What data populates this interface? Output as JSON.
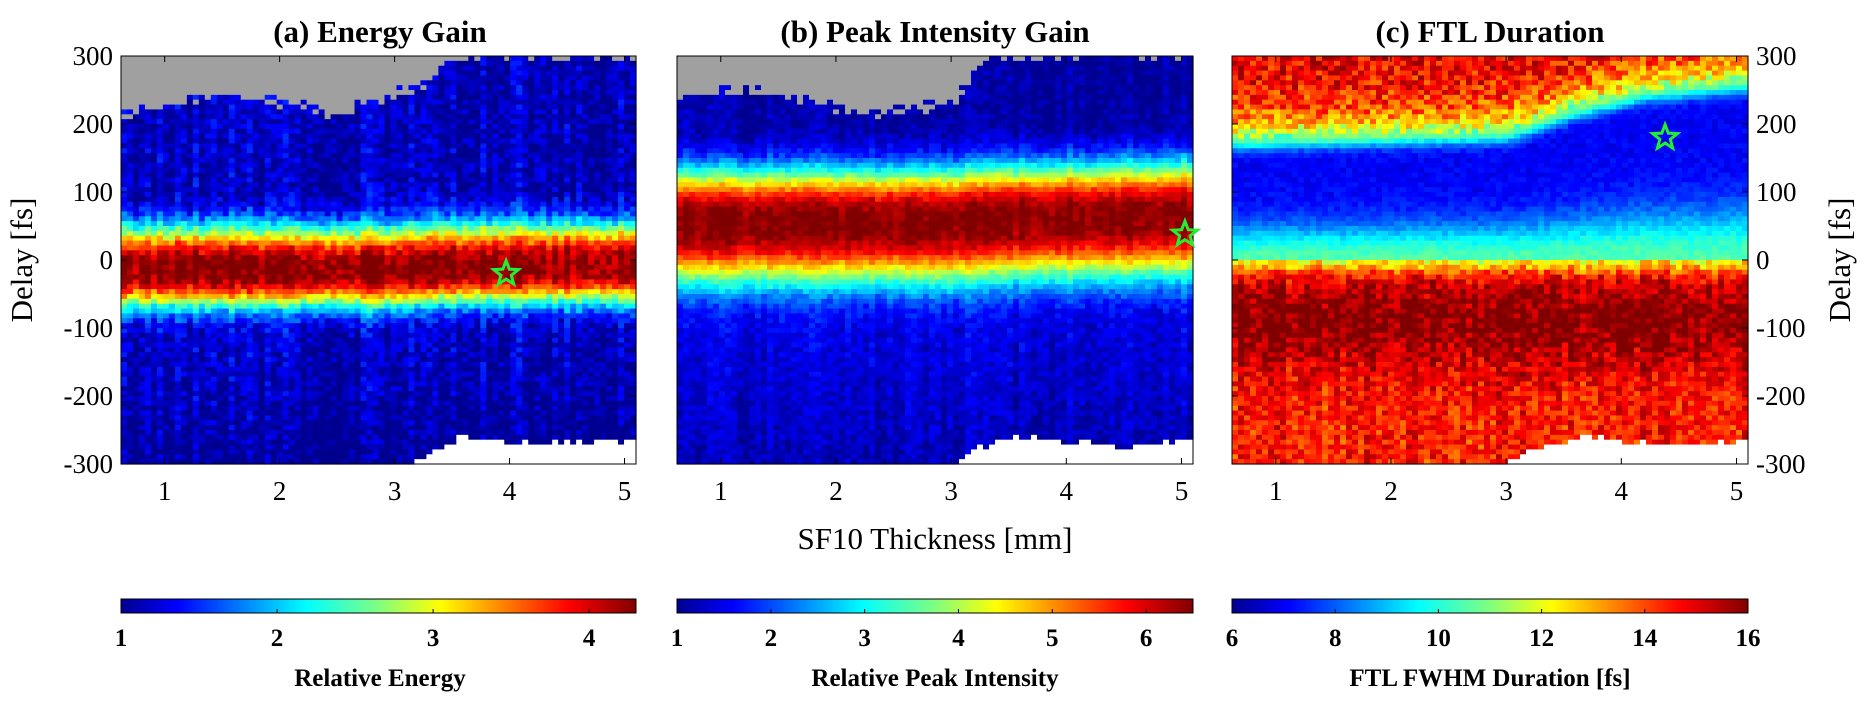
{
  "chart_data": [
    {
      "type": "heatmap",
      "title": "(a) Energy Gain",
      "xlabel": "SF10 Thickness [mm]",
      "ylabel": "Delay [fs]",
      "xlim": [
        0.62,
        5.1
      ],
      "ylim": [
        -300,
        300
      ],
      "xticks": [
        1,
        2,
        3,
        4,
        5
      ],
      "yticks": [
        -300,
        -200,
        -100,
        0,
        100,
        200,
        300
      ],
      "colorbar": {
        "label": "Relative Energy",
        "min": 1,
        "max": 4.3,
        "ticks": [
          1,
          2,
          3,
          4
        ]
      },
      "features": {
        "peak_center": [
          [
            0.62,
            -15
          ],
          [
            3.0,
            -15
          ],
          [
            3.4,
            -10
          ],
          [
            5.1,
            -10
          ]
        ],
        "band_half_width": 65,
        "band_half_width_low": 55,
        "peak_value": 4.3,
        "baseline": 1.0,
        "upper_floor": 1.15,
        "masked_top": {
          "from_fs": [
            [
              0.62,
              215
            ],
            [
              1.5,
              245
            ],
            [
              2.5,
              215
            ],
            [
              3.2,
              255
            ],
            [
              3.5,
              300
            ],
            [
              5.1,
              300
            ]
          ],
          "color": "#a0a0a0"
        },
        "masked_bottom": {
          "from_fs": [
            [
              0.62,
              -310
            ],
            [
              3.0,
              -310
            ],
            [
              3.3,
              -285
            ],
            [
              3.6,
              -260
            ],
            [
              4.2,
              -270
            ],
            [
              5.1,
              -265
            ]
          ],
          "color": "#ffffff"
        }
      },
      "marker": {
        "x": 3.97,
        "y": -20,
        "symbol": "star",
        "color": "#22ee33"
      }
    },
    {
      "type": "heatmap",
      "title": "(b) Peak Intensity Gain",
      "xlabel": "SF10 Thickness [mm]",
      "ylabel": "Delay [fs]",
      "xlim": [
        0.62,
        5.1
      ],
      "ylim": [
        -300,
        300
      ],
      "xticks": [
        1,
        2,
        3,
        4,
        5
      ],
      "yticks": [
        -300,
        -200,
        -100,
        0,
        100,
        200,
        300
      ],
      "colorbar": {
        "label": "Relative Peak Intensity",
        "min": 1,
        "max": 6.5,
        "ticks": [
          1,
          2,
          3,
          4,
          5,
          6
        ]
      },
      "features": {
        "peak_center": [
          [
            0.62,
            55
          ],
          [
            3.0,
            55
          ],
          [
            3.4,
            60
          ],
          [
            5.1,
            65
          ]
        ],
        "band_half_width": 80,
        "band_half_width_low": 90,
        "peak_value": 6.5,
        "baseline": 1.2,
        "upper_floor": 1.1,
        "masked_top": {
          "from_fs": [
            [
              0.62,
              240
            ],
            [
              1.3,
              250
            ],
            [
              2.3,
              215
            ],
            [
              3.0,
              230
            ],
            [
              3.3,
              300
            ],
            [
              5.1,
              300
            ]
          ],
          "color": "#a0a0a0"
        },
        "masked_bottom": {
          "from_fs": [
            [
              0.62,
              -310
            ],
            [
              2.9,
              -310
            ],
            [
              3.2,
              -280
            ],
            [
              3.6,
              -260
            ],
            [
              4.5,
              -275
            ],
            [
              5.1,
              -265
            ]
          ],
          "color": "#ffffff"
        }
      },
      "marker": {
        "x": 5.03,
        "y": 38,
        "symbol": "star",
        "color": "#22ee33"
      }
    },
    {
      "type": "heatmap",
      "title": "(c) FTL Duration",
      "xlabel": "SF10 Thickness [mm]",
      "ylabel": "Delay [fs]",
      "xlim": [
        0.62,
        5.1
      ],
      "ylim": [
        -300,
        300
      ],
      "xticks": [
        1,
        2,
        3,
        4,
        5
      ],
      "yticks": [
        -300,
        -200,
        -100,
        0,
        100,
        200,
        300
      ],
      "colorbar": {
        "label": "FTL FWHM Duration [fs]",
        "min": 6,
        "max": 16,
        "ticks": [
          6,
          8,
          10,
          12,
          14,
          16
        ]
      },
      "features": {
        "trough_upper_edge": [
          [
            0.62,
            180
          ],
          [
            3.0,
            190
          ],
          [
            3.6,
            225
          ],
          [
            4.2,
            250
          ],
          [
            5.1,
            265
          ]
        ],
        "trough_lower_edge": [
          [
            0.62,
            0
          ],
          [
            5.1,
            0
          ]
        ],
        "trough_value": 7.0,
        "mid_value": 10.5,
        "background": 14.5,
        "dark_band": {
          "center": -90,
          "value": 16
        },
        "masked_bottom": {
          "from_fs": [
            [
              0.62,
              -310
            ],
            [
              2.9,
              -310
            ],
            [
              3.2,
              -280
            ],
            [
              3.7,
              -260
            ],
            [
              4.5,
              -275
            ],
            [
              5.1,
              -265
            ]
          ],
          "color": "#ffffff"
        }
      },
      "marker": {
        "x": 4.38,
        "y": 180,
        "symbol": "star",
        "color": "#22ee33"
      }
    }
  ]
}
